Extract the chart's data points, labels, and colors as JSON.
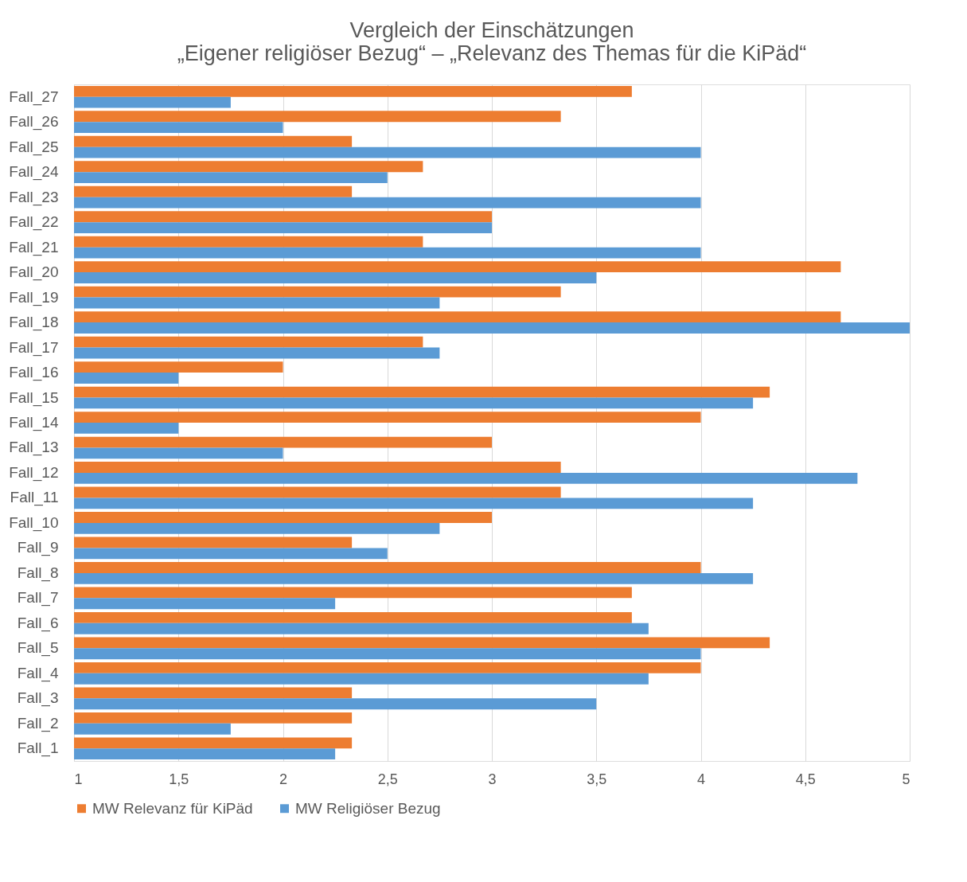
{
  "chart_data": {
    "type": "bar",
    "orientation": "horizontal",
    "title": "Vergleich der Einschätzungen\n„Eigener religiöser Bezug“ – „Relevanz des Themas für die KiPäd“",
    "categories": [
      "Fall_27",
      "Fall_26",
      "Fall_25",
      "Fall_24",
      "Fall_23",
      "Fall_22",
      "Fall_21",
      "Fall_20",
      "Fall_19",
      "Fall_18",
      "Fall_17",
      "Fall_16",
      "Fall_15",
      "Fall_14",
      "Fall_13",
      "Fall_12",
      "Fall_11",
      "Fall_10",
      "Fall_9",
      "Fall_8",
      "Fall_7",
      "Fall_6",
      "Fall_5",
      "Fall_4",
      "Fall_3",
      "Fall_2",
      "Fall_1"
    ],
    "series": [
      {
        "name": "MW Relevanz für KiPäd",
        "color": "#ed7d31",
        "values": [
          3.67,
          3.33,
          2.33,
          2.67,
          2.33,
          3.0,
          2.67,
          4.67,
          3.33,
          4.67,
          2.67,
          2.0,
          4.33,
          4.0,
          3.0,
          3.33,
          3.33,
          3.0,
          2.33,
          4.0,
          3.67,
          3.67,
          4.33,
          4.0,
          2.33,
          2.33,
          2.33
        ]
      },
      {
        "name": "MW Religiöser Bezug",
        "color": "#5b9bd5",
        "values": [
          1.75,
          2.0,
          4.0,
          2.5,
          4.0,
          3.0,
          4.0,
          3.5,
          2.75,
          5.0,
          2.75,
          1.5,
          4.25,
          1.5,
          2.0,
          4.75,
          4.25,
          2.75,
          2.5,
          4.25,
          2.25,
          3.75,
          4.0,
          3.75,
          3.5,
          1.75,
          2.25
        ]
      }
    ],
    "xlim": [
      1,
      5
    ],
    "xticks": [
      1,
      {
        "value": 1.5,
        "label": "1,5"
      },
      2,
      {
        "value": 2.5,
        "label": "2,5"
      },
      3,
      {
        "value": 3.5,
        "label": "3,5"
      },
      4,
      {
        "value": 4.5,
        "label": "4,5"
      },
      5
    ],
    "grid": "x",
    "legend": "bottom"
  }
}
